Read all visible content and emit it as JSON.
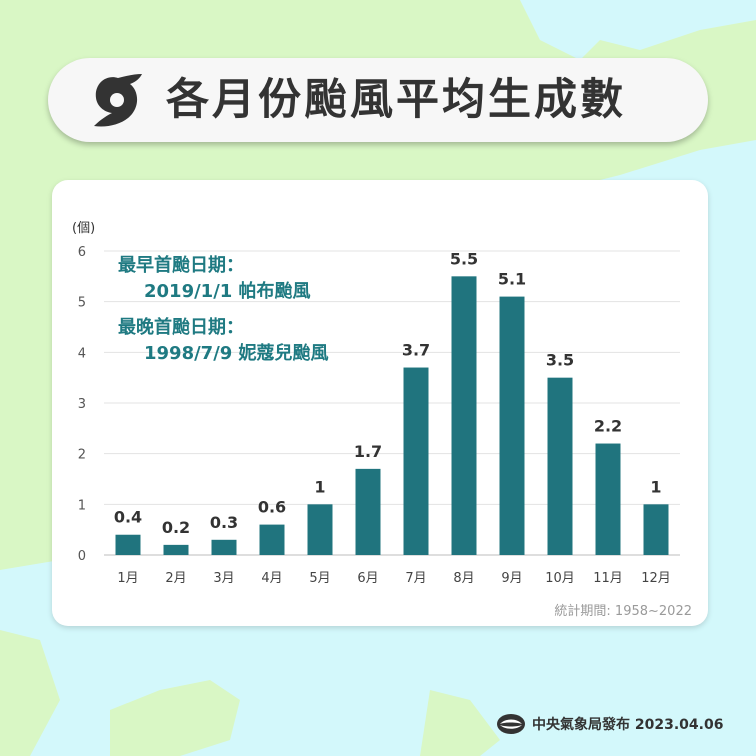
{
  "title": "各月份颱風平均生成數",
  "colors": {
    "bar": "#20747e",
    "ocean": "#d3f8fb",
    "land": "#d9f7c5",
    "note": "#1f7a82"
  },
  "icons": {
    "title": "typhoon-icon",
    "footer": "cwb-logo-icon"
  },
  "notes": {
    "earliest_label": "最早首颱日期：",
    "earliest_value": "2019/1/1 帕布颱風",
    "latest_label": "最晚首颱日期：",
    "latest_value": "1998/7/9 妮蔻兒颱風"
  },
  "period": "統計期間: 1958~2022",
  "footer": "中央氣象局發布 2023.04.06",
  "chart_data": {
    "type": "bar",
    "title": "各月份颱風平均生成數",
    "ylabel": "(個)",
    "xlabel": "",
    "ylim": [
      0,
      6
    ],
    "yticks": [
      0,
      1,
      2,
      3,
      4,
      5,
      6
    ],
    "grid": true,
    "categories": [
      "1月",
      "2月",
      "3月",
      "4月",
      "5月",
      "6月",
      "7月",
      "8月",
      "9月",
      "10月",
      "11月",
      "12月"
    ],
    "values": [
      0.4,
      0.2,
      0.3,
      0.6,
      1,
      1.7,
      3.7,
      5.5,
      5.1,
      3.5,
      2.2,
      1
    ]
  }
}
